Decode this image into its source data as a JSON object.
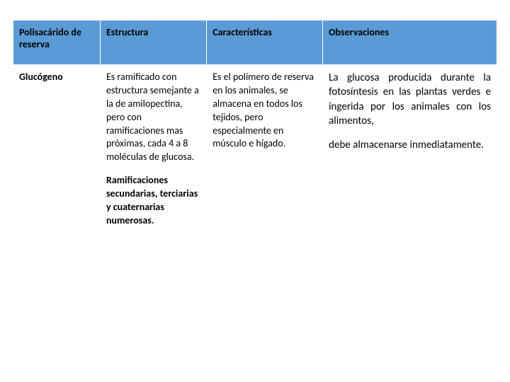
{
  "table": {
    "header_bg": "#5b9bd5",
    "columns": [
      {
        "label": "Polisacárido de reserva",
        "width": "18%"
      },
      {
        "label": "Estructura",
        "width": "22%"
      },
      {
        "label": "Características",
        "width": "24%"
      },
      {
        "label": "Observaciones",
        "width": "36%"
      }
    ],
    "row": {
      "name": "Glucógeno",
      "estructura_p1": "Es ramificado con estructura semejante a la de amilopectina, pero con ramificaciones mas próximas, cada 4 a 8 moléculas de glucosa.",
      "estructura_p2": "Ramificaciones secundarias, terciarias y cuaternarias numerosas.",
      "caracteristicas": "Es el polímero de reserva en los animales, se almacena en todos los tejidos, pero especialmente en músculo e hígado.",
      "observaciones_p1": "La glucosa producida durante la fotosíntesis en las plantas verdes e ingerida por los animales con los alimentos,",
      "observaciones_p2": "debe almacenarse inmediatamente."
    }
  }
}
